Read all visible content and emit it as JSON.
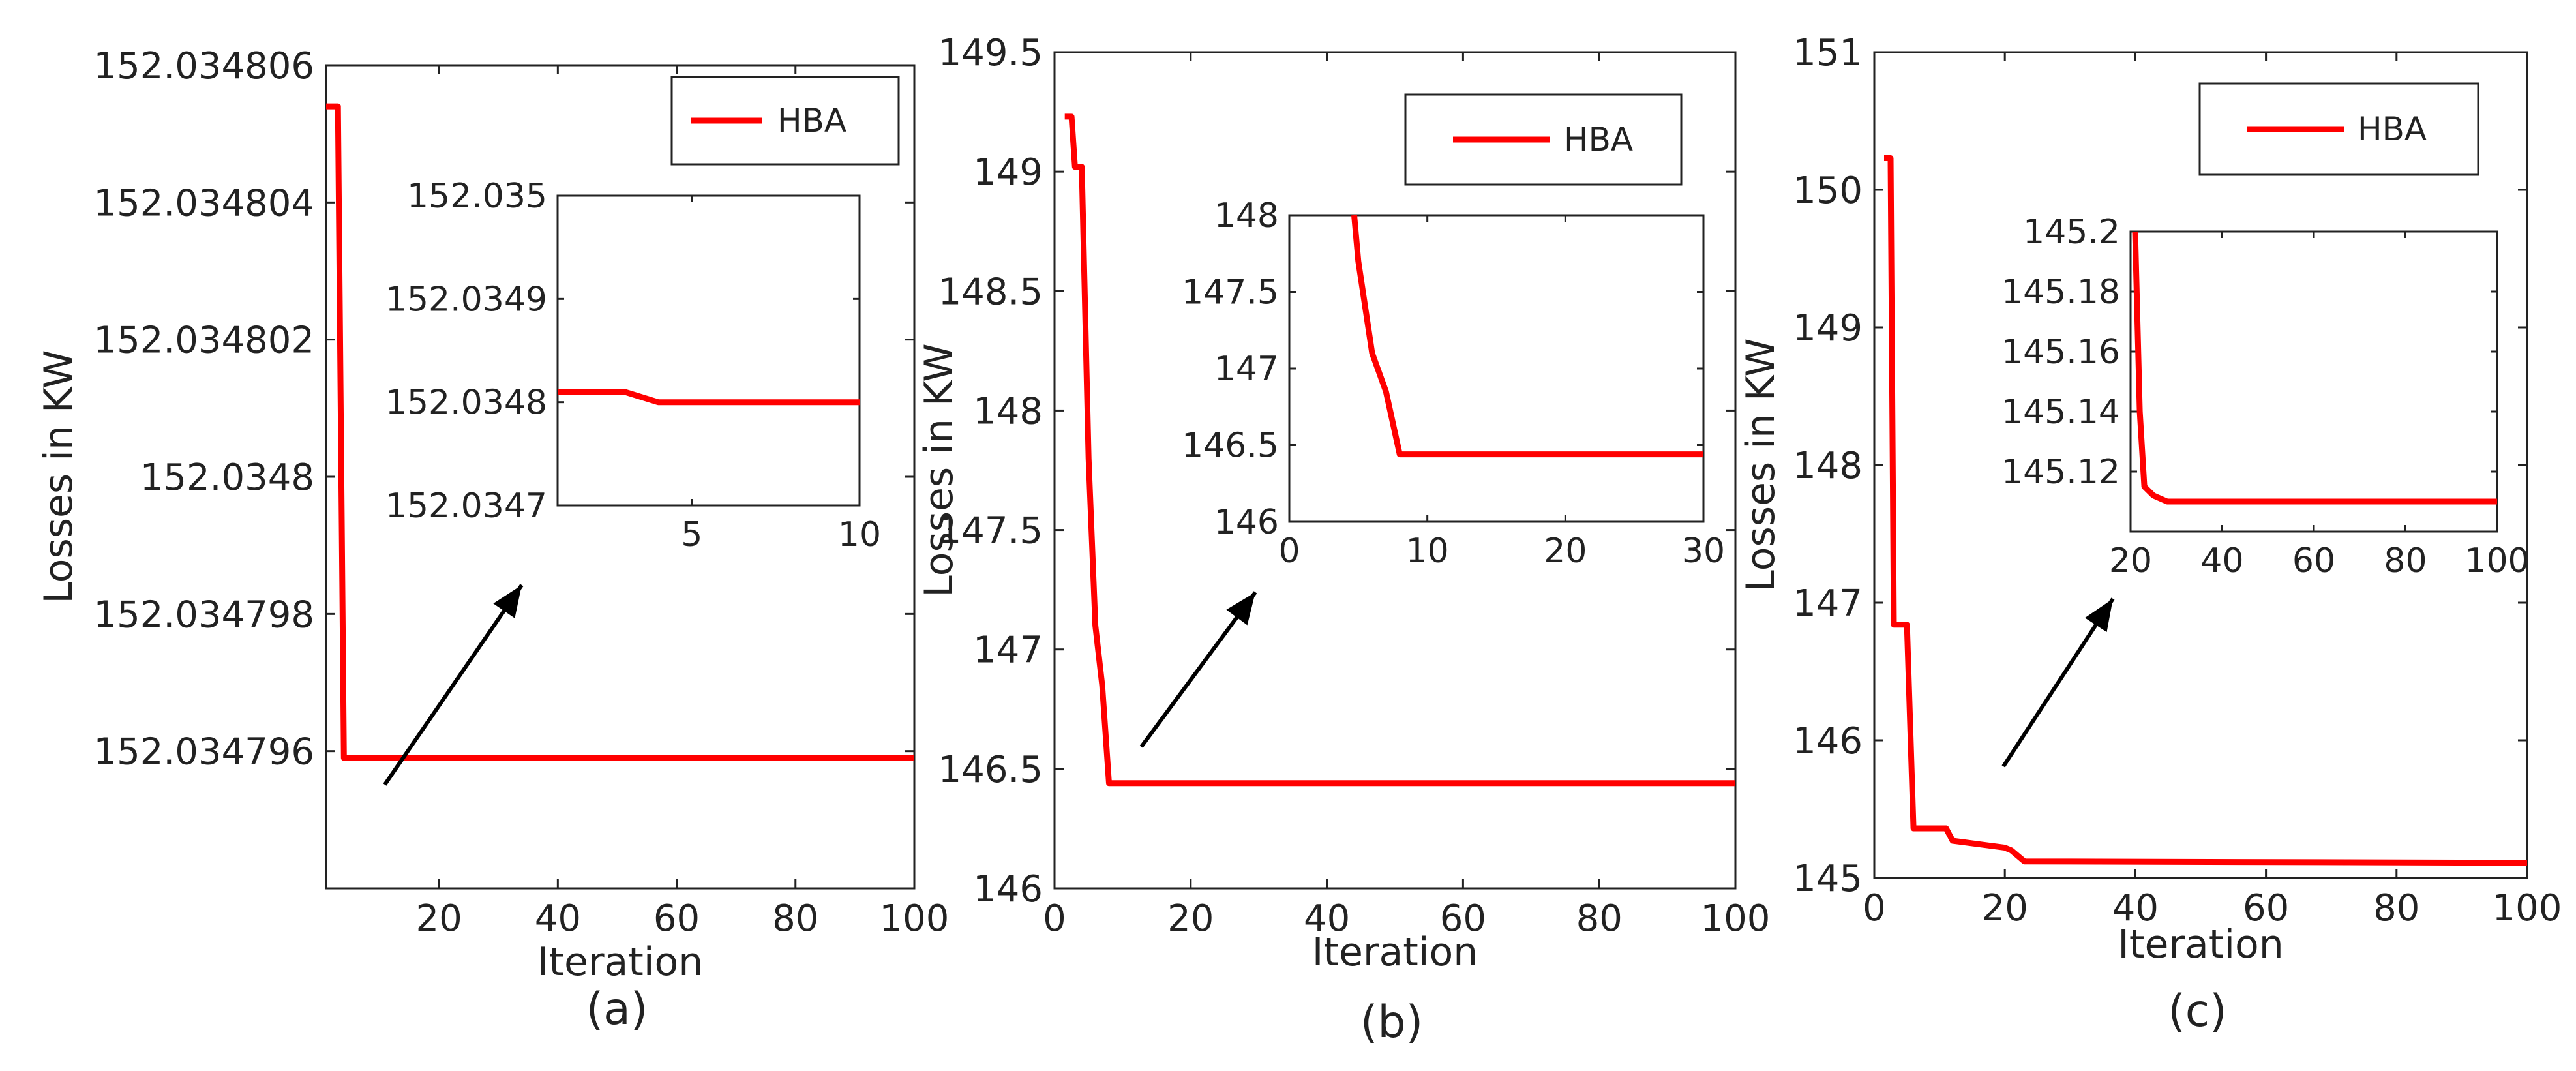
{
  "chart_data": [
    {
      "type": "line",
      "caption": "(a)",
      "xlabel": "Iteration",
      "ylabel": "Losses in KW",
      "xlim": [
        1,
        100
      ],
      "ylim": [
        152.034794,
        152.034806
      ],
      "x_ticks": [
        "20",
        "40",
        "60",
        "80",
        "100"
      ],
      "y_ticks": [
        "152.034796",
        "152.034798",
        "152.0348",
        "152.034802",
        "152.034804",
        "152.034806"
      ],
      "series": [
        {
          "name": "HBA",
          "color": "#ff0000",
          "points": [
            [
              1,
              152.0348054
            ],
            [
              3,
              152.0348054
            ],
            [
              4,
              152.0347959
            ],
            [
              10,
              152.0347959
            ],
            [
              100,
              152.0347959
            ]
          ]
        }
      ],
      "inset": {
        "xlim": [
          1,
          10
        ],
        "ylim": [
          152.0347,
          152.035
        ],
        "x_ticks": [
          "5",
          "10"
        ],
        "y_ticks": [
          "152.0347",
          "152.0348",
          "152.0349",
          "152.035"
        ],
        "points": [
          [
            1,
            152.03481
          ],
          [
            3,
            152.03481
          ],
          [
            4,
            152.0348
          ],
          [
            10,
            152.0348
          ]
        ]
      }
    },
    {
      "type": "line",
      "caption": "(b)",
      "xlabel": "Iteration",
      "ylabel": "Losses in KW",
      "xlim": [
        0,
        100
      ],
      "ylim": [
        146,
        149.5
      ],
      "x_ticks": [
        "0",
        "20",
        "40",
        "60",
        "80",
        "100"
      ],
      "y_ticks": [
        "146",
        "146.5",
        "147",
        "147.5",
        "148",
        "148.5",
        "149",
        "149.5"
      ],
      "series": [
        {
          "name": "HBA",
          "color": "#ff0000",
          "points": [
            [
              1.5,
              149.23
            ],
            [
              2.5,
              149.23
            ],
            [
              3,
              149.02
            ],
            [
              4,
              149.02
            ],
            [
              5,
              147.8
            ],
            [
              6,
              147.1
            ],
            [
              7,
              146.85
            ],
            [
              8,
              146.44
            ],
            [
              100,
              146.44
            ]
          ]
        }
      ],
      "inset": {
        "xlim": [
          0,
          30
        ],
        "ylim": [
          146,
          148
        ],
        "x_ticks": [
          "0",
          "10",
          "20",
          "30"
        ],
        "y_ticks": [
          "146",
          "146.5",
          "147",
          "147.5",
          "148"
        ],
        "points": [
          [
            4.7,
            148
          ],
          [
            5,
            147.7
          ],
          [
            6,
            147.1
          ],
          [
            7,
            146.85
          ],
          [
            8,
            146.44
          ],
          [
            30,
            146.44
          ]
        ]
      }
    },
    {
      "type": "line",
      "caption": "(c)",
      "xlabel": "Iteration",
      "ylabel": "Losses in KW",
      "xlim": [
        0,
        100
      ],
      "ylim": [
        145,
        151
      ],
      "x_ticks": [
        "0",
        "20",
        "40",
        "60",
        "80",
        "100"
      ],
      "y_ticks": [
        "145",
        "146",
        "147",
        "148",
        "149",
        "150",
        "151"
      ],
      "series": [
        {
          "name": "HBA",
          "color": "#ff0000",
          "points": [
            [
              1.5,
              150.23
            ],
            [
              2.5,
              150.23
            ],
            [
              3,
              146.84
            ],
            [
              5,
              146.84
            ],
            [
              6,
              145.36
            ],
            [
              11,
              145.36
            ],
            [
              12,
              145.27
            ],
            [
              20,
              145.22
            ],
            [
              21,
              145.2
            ],
            [
              23,
              145.12
            ],
            [
              100,
              145.11
            ]
          ]
        }
      ],
      "inset": {
        "xlim": [
          20,
          100
        ],
        "ylim": [
          145.1,
          145.2
        ],
        "x_ticks": [
          "20",
          "40",
          "60",
          "80",
          "100"
        ],
        "y_ticks": [
          "145.12",
          "145.14",
          "145.16",
          "145.18",
          "145.2"
        ],
        "points": [
          [
            21,
            145.2
          ],
          [
            22,
            145.14
          ],
          [
            23,
            145.115
          ],
          [
            25,
            145.112
          ],
          [
            28,
            145.11
          ],
          [
            100,
            145.11
          ]
        ]
      }
    }
  ]
}
